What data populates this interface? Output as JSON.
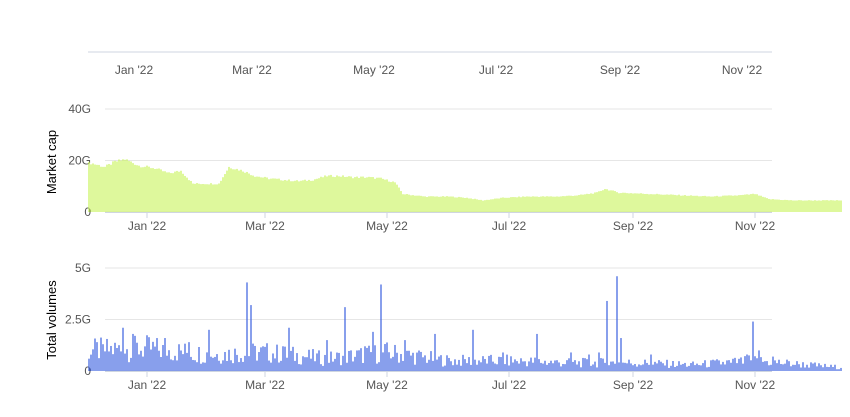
{
  "colors": {
    "market_cap": "#c8f25a",
    "volume": "#3a5fe0",
    "grid": "#e6e6e6",
    "axis_text": "#555555",
    "axis_line": "#cfd6e0"
  },
  "navigator": {
    "ticks": [
      {
        "label": "Jan '22",
        "date": "2022-01-01"
      },
      {
        "label": "Mar '22",
        "date": "2022-03-01"
      },
      {
        "label": "May '22",
        "date": "2022-05-01"
      },
      {
        "label": "Jul '22",
        "date": "2022-07-01"
      },
      {
        "label": "Sep '22",
        "date": "2022-09-01"
      },
      {
        "label": "Nov '22",
        "date": "2022-11-01"
      }
    ]
  },
  "chart_data": [
    {
      "type": "bar",
      "ylabel": "Market cap",
      "ylim": [
        0,
        40
      ],
      "yunit": "G",
      "yticks": [
        {
          "value": 0,
          "label": "0"
        },
        {
          "value": 20,
          "label": "20G"
        },
        {
          "value": 40,
          "label": "40G"
        }
      ],
      "xticks": [
        {
          "label": "Jan '22",
          "date": "2022-01-01"
        },
        {
          "label": "Mar '22",
          "date": "2022-03-01"
        },
        {
          "label": "May '22",
          "date": "2022-05-01"
        },
        {
          "label": "Jul '22",
          "date": "2022-07-01"
        },
        {
          "label": "Sep '22",
          "date": "2022-09-01"
        },
        {
          "label": "Nov '22",
          "date": "2022-11-01"
        }
      ],
      "grid": true,
      "series": [
        {
          "points": [
            [
              "2021-12-04",
              19
            ],
            [
              "2021-12-11",
              17.5
            ],
            [
              "2021-12-16",
              19.5
            ],
            [
              "2021-12-21",
              20.5
            ],
            [
              "2021-12-28",
              18
            ],
            [
              "2022-01-05",
              17
            ],
            [
              "2022-01-12",
              15
            ],
            [
              "2022-01-18",
              16
            ],
            [
              "2022-01-24",
              11
            ],
            [
              "2022-01-31",
              11
            ],
            [
              "2022-02-06",
              11
            ],
            [
              "2022-02-11",
              17.5
            ],
            [
              "2022-02-18",
              16
            ],
            [
              "2022-02-24",
              14
            ],
            [
              "2022-03-03",
              13
            ],
            [
              "2022-03-10",
              12.5
            ],
            [
              "2022-03-18",
              12
            ],
            [
              "2022-03-25",
              12.5
            ],
            [
              "2022-04-01",
              14
            ],
            [
              "2022-04-07",
              14
            ],
            [
              "2022-04-14",
              13.5
            ],
            [
              "2022-04-21",
              13.5
            ],
            [
              "2022-04-28",
              13
            ],
            [
              "2022-05-05",
              11.5
            ],
            [
              "2022-05-09",
              7
            ],
            [
              "2022-05-20",
              6
            ],
            [
              "2022-06-01",
              6
            ],
            [
              "2022-06-10",
              5.5
            ],
            [
              "2022-06-18",
              4.5
            ],
            [
              "2022-06-28",
              5.5
            ],
            [
              "2022-07-10",
              6
            ],
            [
              "2022-07-25",
              6
            ],
            [
              "2022-08-05",
              6.5
            ],
            [
              "2022-08-14",
              7.5
            ],
            [
              "2022-08-18",
              9
            ],
            [
              "2022-08-25",
              7.5
            ],
            [
              "2022-09-10",
              7
            ],
            [
              "2022-09-25",
              6.5
            ],
            [
              "2022-10-10",
              6
            ],
            [
              "2022-10-25",
              6.5
            ],
            [
              "2022-11-01",
              7
            ],
            [
              "2022-11-08",
              5
            ],
            [
              "2022-11-20",
              4.5
            ],
            [
              "2022-12-10",
              4.5
            ]
          ]
        }
      ]
    },
    {
      "type": "bar",
      "ylabel": "Total volumes",
      "ylim": [
        0,
        5
      ],
      "yunit": "G",
      "yticks": [
        {
          "value": 0,
          "label": "0"
        },
        {
          "value": 2.5,
          "label": "2.5G"
        },
        {
          "value": 5,
          "label": "5G"
        }
      ],
      "xticks": [
        {
          "label": "Jan '22",
          "date": "2022-01-01"
        },
        {
          "label": "Mar '22",
          "date": "2022-03-01"
        },
        {
          "label": "May '22",
          "date": "2022-05-01"
        },
        {
          "label": "Jul '22",
          "date": "2022-07-01"
        },
        {
          "label": "Sep '22",
          "date": "2022-09-01"
        },
        {
          "label": "Nov '22",
          "date": "2022-11-01"
        }
      ],
      "grid": true,
      "series": [
        {
          "baseline": [
            [
              "2021-12-04",
              1.0
            ],
            [
              "2022-01-01",
              1.1
            ],
            [
              "2022-02-01",
              0.8
            ],
            [
              "2022-03-01",
              0.9
            ],
            [
              "2022-04-01",
              0.6
            ],
            [
              "2022-05-01",
              0.9
            ],
            [
              "2022-06-01",
              0.5
            ],
            [
              "2022-07-01",
              0.5
            ],
            [
              "2022-08-01",
              0.4
            ],
            [
              "2022-09-01",
              0.4
            ],
            [
              "2022-10-01",
              0.3
            ],
            [
              "2022-11-01",
              0.5
            ],
            [
              "2022-12-10",
              0.2
            ]
          ],
          "spikes": [
            [
              "2021-12-10",
              1.3
            ],
            [
              "2021-12-20",
              2.1
            ],
            [
              "2021-12-25",
              1.8
            ],
            [
              "2022-01-10",
              1.6
            ],
            [
              "2022-01-22",
              1.4
            ],
            [
              "2022-02-01",
              2.0
            ],
            [
              "2022-02-20",
              4.3
            ],
            [
              "2022-02-22",
              3.2
            ],
            [
              "2022-03-10",
              1.2
            ],
            [
              "2022-03-13",
              2.1
            ],
            [
              "2022-04-01",
              1.5
            ],
            [
              "2022-04-10",
              3.1
            ],
            [
              "2022-04-20",
              1.2
            ],
            [
              "2022-04-24",
              1.9
            ],
            [
              "2022-04-28",
              4.2
            ],
            [
              "2022-05-10",
              1.5
            ],
            [
              "2022-05-25",
              1.8
            ],
            [
              "2022-06-13",
              2.0
            ],
            [
              "2022-06-28",
              0.9
            ],
            [
              "2022-07-15",
              1.8
            ],
            [
              "2022-08-01",
              0.9
            ],
            [
              "2022-08-10",
              0.8
            ],
            [
              "2022-08-15",
              0.9
            ],
            [
              "2022-08-19",
              3.4
            ],
            [
              "2022-08-24",
              4.6
            ],
            [
              "2022-08-26",
              1.6
            ],
            [
              "2022-09-10",
              0.8
            ],
            [
              "2022-10-20",
              0.4
            ],
            [
              "2022-10-28",
              0.8
            ],
            [
              "2022-10-31",
              2.4
            ],
            [
              "2022-11-03",
              1.0
            ],
            [
              "2022-11-10",
              0.7
            ]
          ]
        }
      ]
    }
  ]
}
